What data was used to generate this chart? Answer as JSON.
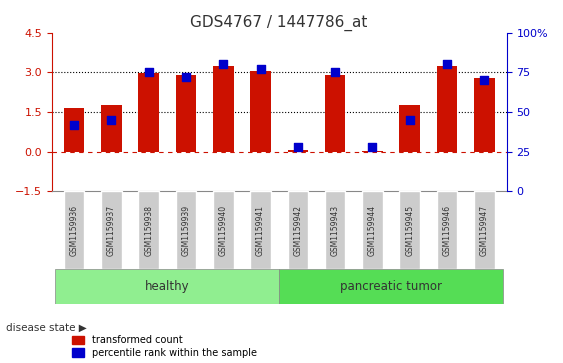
{
  "title": "GDS4767 / 1447786_at",
  "samples": [
    "GSM1159936",
    "GSM1159937",
    "GSM1159938",
    "GSM1159939",
    "GSM1159940",
    "GSM1159941",
    "GSM1159942",
    "GSM1159943",
    "GSM1159944",
    "GSM1159945",
    "GSM1159946",
    "GSM1159947"
  ],
  "transformed_count": [
    1.65,
    1.75,
    2.97,
    2.88,
    3.22,
    3.03,
    0.07,
    2.88,
    0.02,
    1.75,
    3.22,
    2.8
  ],
  "percentile_rank": [
    42,
    45,
    75,
    72,
    80,
    77,
    28,
    75,
    28,
    45,
    80,
    70
  ],
  "bar_color": "#cc1100",
  "dot_color": "#0000cc",
  "healthy_count": 6,
  "tumor_count": 6,
  "healthy_label": "healthy",
  "tumor_label": "pancreatic tumor",
  "disease_state_label": "disease state",
  "legend_red": "transformed count",
  "legend_blue": "percentile rank within the sample",
  "ylim_left": [
    -1.5,
    4.5
  ],
  "ylim_right": [
    0,
    100
  ],
  "yticks_left": [
    -1.5,
    0.0,
    1.5,
    3.0,
    4.5
  ],
  "yticks_right": [
    0,
    25,
    50,
    75,
    100
  ],
  "hlines": [
    0.0,
    1.5,
    3.0
  ],
  "hline_styles": [
    "dashed",
    "dotted",
    "dotted"
  ],
  "hline_colors": [
    "#cc1100",
    "#000000",
    "#000000"
  ],
  "healthy_bg": "#90ee90",
  "tumor_bg": "#55dd55",
  "xlabel_bg": "#cccccc",
  "background_color": "#ffffff"
}
